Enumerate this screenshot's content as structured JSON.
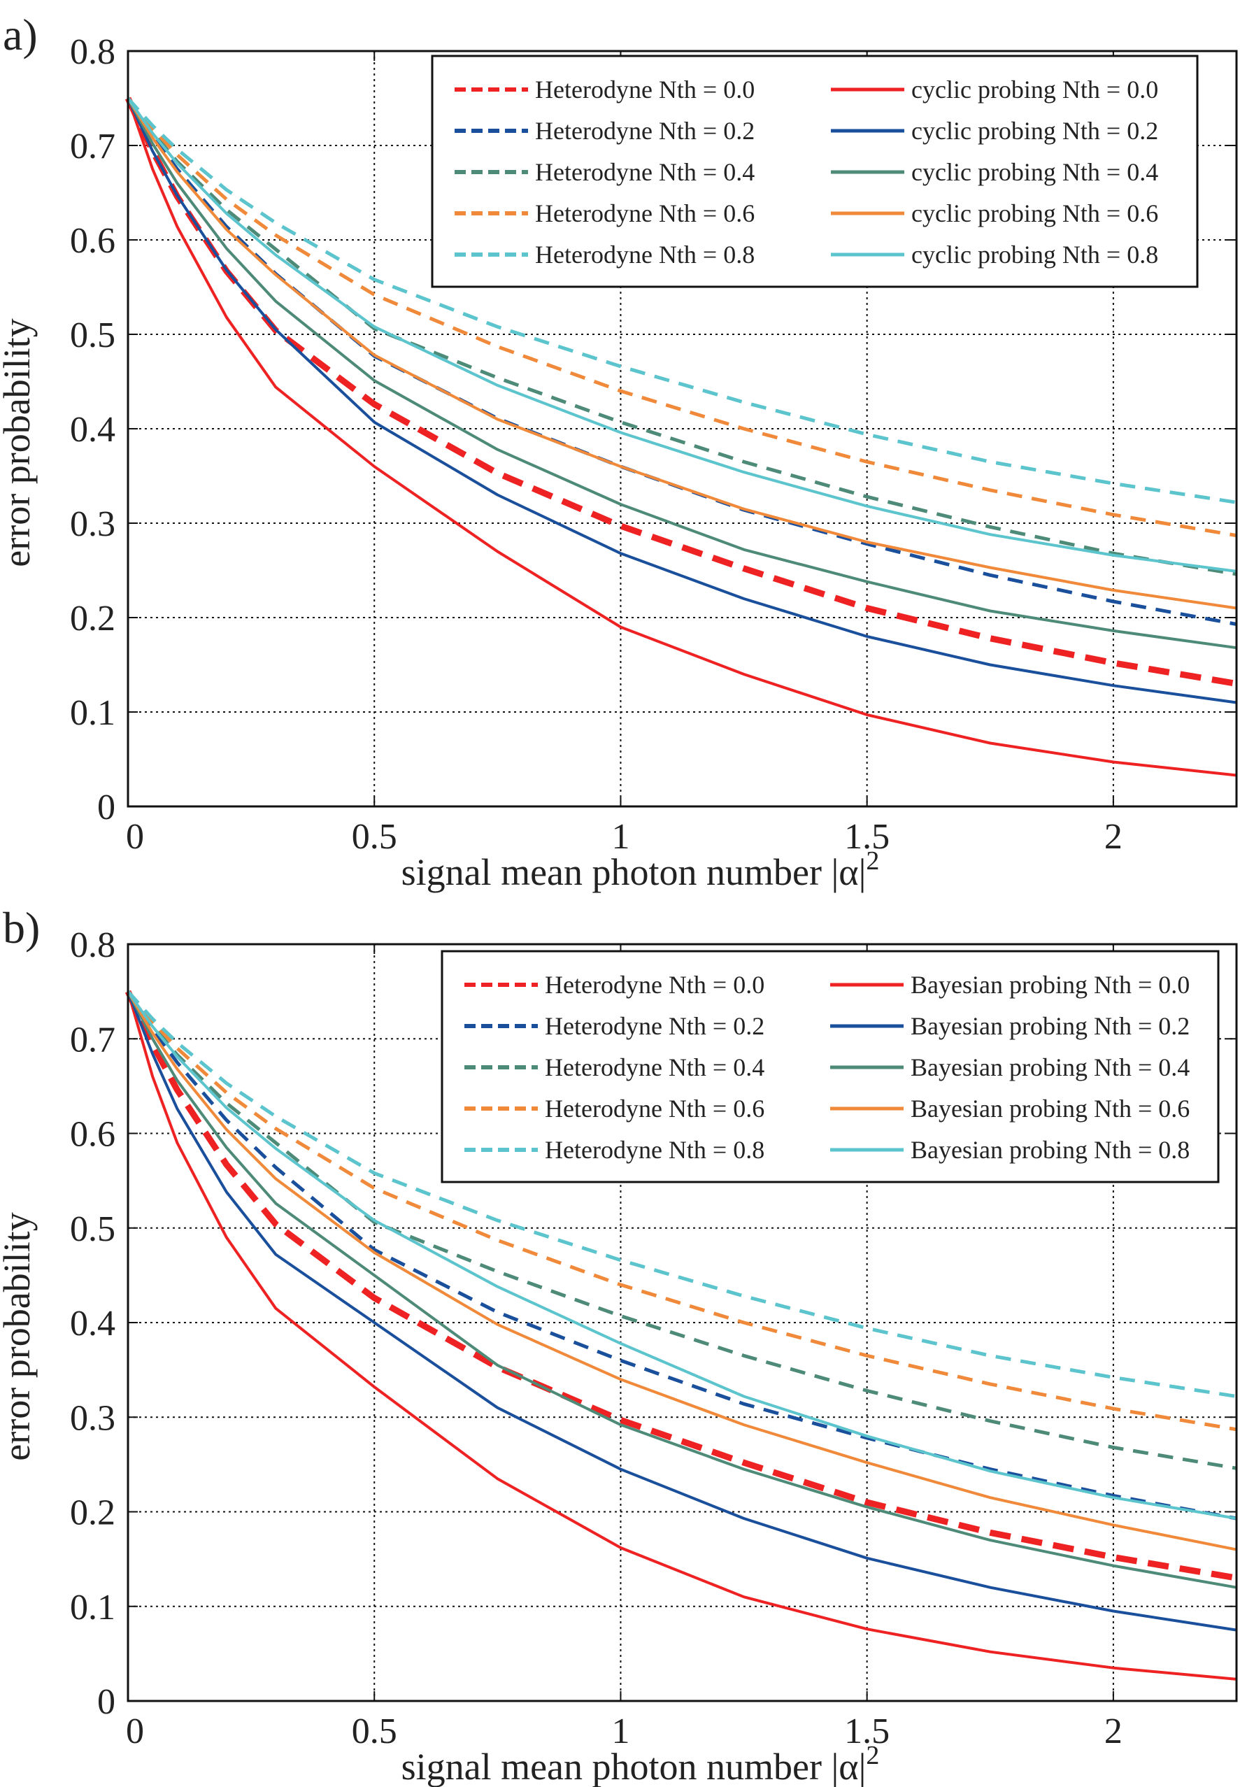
{
  "chart_data": [
    {
      "type": "line",
      "panel_label": "a)",
      "xlabel": "signal mean photon number |α|",
      "xlabel_sup": "2",
      "ylabel": "error probability",
      "xlim": [
        0,
        2.25
      ],
      "ylim": [
        0,
        0.8
      ],
      "xticks": [
        0,
        0.5,
        1,
        1.5,
        2
      ],
      "xtick_labels": [
        "0",
        "0.5",
        "1",
        "1.5",
        "2"
      ],
      "yticks": [
        0,
        0.1,
        0.2,
        0.3,
        0.4,
        0.5,
        0.6,
        0.7,
        0.8
      ],
      "ytick_labels": [
        "0",
        "0.1",
        "0.2",
        "0.3",
        "0.4",
        "0.5",
        "0.6",
        "0.7",
        "0.8"
      ],
      "grid": true,
      "legend_position": "top-right",
      "x": [
        0,
        0.05,
        0.1,
        0.2,
        0.3,
        0.5,
        0.75,
        1,
        1.25,
        1.5,
        1.75,
        2,
        2.25
      ],
      "series": [
        {
          "name": "Heterodyne Nth = 0.0",
          "style": "dashed",
          "color": "#ee2222",
          "values": [
            0.75,
            0.694,
            0.646,
            0.567,
            0.504,
            0.426,
            0.353,
            0.297,
            0.252,
            0.21,
            0.178,
            0.152,
            0.13
          ]
        },
        {
          "name": "Heterodyne Nth = 0.2",
          "style": "dashed",
          "color": "#1a4f9c",
          "values": [
            0.75,
            0.71,
            0.675,
            0.614,
            0.564,
            0.477,
            0.411,
            0.36,
            0.314,
            0.278,
            0.245,
            0.217,
            0.193
          ]
        },
        {
          "name": "Heterodyne Nth = 0.4",
          "style": "dashed",
          "color": "#4d8a78",
          "values": [
            0.75,
            0.714,
            0.683,
            0.632,
            0.59,
            0.506,
            0.454,
            0.407,
            0.365,
            0.328,
            0.296,
            0.268,
            0.246
          ]
        },
        {
          "name": "Heterodyne Nth = 0.6",
          "style": "dashed",
          "color": "#f08a3a",
          "values": [
            0.75,
            0.718,
            0.69,
            0.643,
            0.605,
            0.542,
            0.487,
            0.44,
            0.4,
            0.365,
            0.335,
            0.309,
            0.287
          ]
        },
        {
          "name": "Heterodyne Nth = 0.8",
          "style": "dashed",
          "color": "#5bc4cc",
          "values": [
            0.75,
            0.721,
            0.696,
            0.653,
            0.618,
            0.558,
            0.508,
            0.466,
            0.428,
            0.394,
            0.365,
            0.342,
            0.322
          ]
        },
        {
          "name": "cyclic probing Nth = 0.0",
          "style": "solid",
          "color": "#ee2222",
          "values": [
            0.75,
            0.675,
            0.614,
            0.518,
            0.444,
            0.36,
            0.27,
            0.19,
            0.14,
            0.097,
            0.067,
            0.047,
            0.033
          ]
        },
        {
          "name": "cyclic probing Nth = 0.2",
          "style": "solid",
          "color": "#1a4f9c",
          "values": [
            0.75,
            0.694,
            0.647,
            0.568,
            0.505,
            0.407,
            0.33,
            0.268,
            0.22,
            0.18,
            0.15,
            0.128,
            0.11
          ]
        },
        {
          "name": "cyclic probing Nth = 0.4",
          "style": "solid",
          "color": "#4d8a78",
          "values": [
            0.75,
            0.702,
            0.66,
            0.591,
            0.535,
            0.451,
            0.378,
            0.32,
            0.272,
            0.238,
            0.207,
            0.186,
            0.168
          ]
        },
        {
          "name": "cyclic probing Nth = 0.6",
          "style": "solid",
          "color": "#f08a3a",
          "values": [
            0.75,
            0.708,
            0.672,
            0.611,
            0.563,
            0.478,
            0.41,
            0.36,
            0.315,
            0.28,
            0.253,
            0.229,
            0.21
          ]
        },
        {
          "name": "cyclic probing Nth = 0.8",
          "style": "solid",
          "color": "#5bc4cc",
          "values": [
            0.75,
            0.713,
            0.681,
            0.628,
            0.584,
            0.508,
            0.446,
            0.396,
            0.354,
            0.318,
            0.288,
            0.266,
            0.249
          ]
        }
      ]
    },
    {
      "type": "line",
      "panel_label": "b)",
      "xlabel": "signal mean photon number |α|",
      "xlabel_sup": "2",
      "ylabel": "error probability",
      "xlim": [
        0,
        2.25
      ],
      "ylim": [
        0,
        0.8
      ],
      "xticks": [
        0,
        0.5,
        1,
        1.5,
        2
      ],
      "xtick_labels": [
        "0",
        "0.5",
        "1",
        "1.5",
        "2"
      ],
      "yticks": [
        0,
        0.1,
        0.2,
        0.3,
        0.4,
        0.5,
        0.6,
        0.7,
        0.8
      ],
      "ytick_labels": [
        "0",
        "0.1",
        "0.2",
        "0.3",
        "0.4",
        "0.5",
        "0.6",
        "0.7",
        "0.8"
      ],
      "grid": true,
      "legend_position": "top-right",
      "x": [
        0,
        0.05,
        0.1,
        0.2,
        0.3,
        0.5,
        0.75,
        1,
        1.25,
        1.5,
        1.75,
        2,
        2.25
      ],
      "series": [
        {
          "name": "Heterodyne Nth = 0.0",
          "style": "dashed",
          "color": "#ee2222",
          "values": [
            0.75,
            0.694,
            0.646,
            0.567,
            0.504,
            0.426,
            0.353,
            0.297,
            0.252,
            0.21,
            0.178,
            0.152,
            0.13
          ]
        },
        {
          "name": "Heterodyne Nth = 0.2",
          "style": "dashed",
          "color": "#1a4f9c",
          "values": [
            0.75,
            0.71,
            0.675,
            0.614,
            0.564,
            0.477,
            0.411,
            0.36,
            0.314,
            0.278,
            0.245,
            0.217,
            0.193
          ]
        },
        {
          "name": "Heterodyne Nth = 0.4",
          "style": "dashed",
          "color": "#4d8a78",
          "values": [
            0.75,
            0.714,
            0.683,
            0.632,
            0.59,
            0.506,
            0.454,
            0.407,
            0.365,
            0.328,
            0.296,
            0.268,
            0.246
          ]
        },
        {
          "name": "Heterodyne Nth = 0.6",
          "style": "dashed",
          "color": "#f08a3a",
          "values": [
            0.75,
            0.718,
            0.69,
            0.643,
            0.605,
            0.542,
            0.487,
            0.44,
            0.4,
            0.365,
            0.335,
            0.309,
            0.287
          ]
        },
        {
          "name": "Heterodyne Nth = 0.8",
          "style": "dashed",
          "color": "#5bc4cc",
          "values": [
            0.75,
            0.721,
            0.696,
            0.653,
            0.618,
            0.558,
            0.508,
            0.466,
            0.428,
            0.394,
            0.365,
            0.342,
            0.322
          ]
        },
        {
          "name": "Bayesian probing Nth = 0.0",
          "style": "solid",
          "color": "#ee2222",
          "values": [
            0.75,
            0.66,
            0.59,
            0.49,
            0.415,
            0.332,
            0.235,
            0.162,
            0.11,
            0.076,
            0.052,
            0.035,
            0.023
          ]
        },
        {
          "name": "Bayesian probing Nth = 0.2",
          "style": "solid",
          "color": "#1a4f9c",
          "values": [
            0.75,
            0.684,
            0.626,
            0.538,
            0.472,
            0.4,
            0.31,
            0.245,
            0.193,
            0.151,
            0.12,
            0.095,
            0.075
          ]
        },
        {
          "name": "Bayesian probing Nth = 0.4",
          "style": "solid",
          "color": "#4d8a78",
          "values": [
            0.75,
            0.7,
            0.656,
            0.585,
            0.526,
            0.45,
            0.355,
            0.292,
            0.245,
            0.205,
            0.17,
            0.143,
            0.12
          ]
        },
        {
          "name": "Bayesian probing Nth = 0.6",
          "style": "solid",
          "color": "#f08a3a",
          "values": [
            0.75,
            0.706,
            0.668,
            0.604,
            0.552,
            0.474,
            0.398,
            0.34,
            0.292,
            0.252,
            0.215,
            0.186,
            0.16
          ]
        },
        {
          "name": "Bayesian probing Nth = 0.8",
          "style": "solid",
          "color": "#5bc4cc",
          "values": [
            0.75,
            0.713,
            0.681,
            0.627,
            0.584,
            0.508,
            0.438,
            0.378,
            0.322,
            0.28,
            0.243,
            0.215,
            0.193
          ]
        }
      ]
    }
  ]
}
